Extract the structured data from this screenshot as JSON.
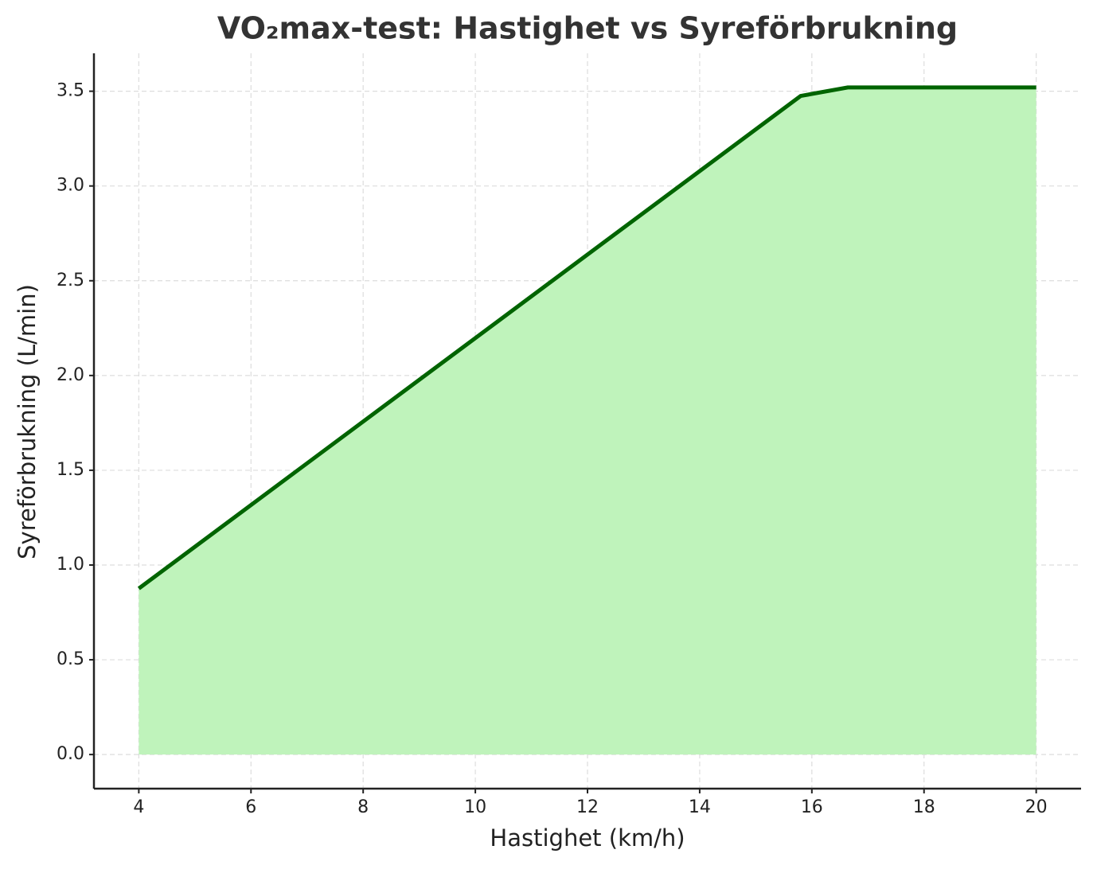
{
  "chart_data": {
    "type": "area",
    "title": "VO₂max-test: Hastighet vs Syreförbrukning",
    "x_label": "Hastighet (km/h)",
    "y_label": "Syreförbrukning (L/min)",
    "x": [
      4,
      15.8,
      16.64,
      20
    ],
    "series": [
      {
        "color": "#006400",
        "fill": "#bff3bb",
        "values": [
          0.876,
          3.475,
          3.52,
          3.52
        ]
      }
    ],
    "xlim": [
      3.2,
      20.8
    ],
    "ylim": [
      -0.18,
      3.7
    ],
    "xticks": [
      4,
      6,
      8,
      10,
      12,
      14,
      16,
      18,
      20
    ],
    "yticks": [
      {
        "value": 0,
        "label": "0.0"
      },
      0.5,
      {
        "value": 1,
        "label": "1.0"
      },
      1.5,
      {
        "value": 2,
        "label": "2.0"
      },
      2.5,
      {
        "value": 3,
        "label": "3.0"
      },
      3.5
    ],
    "grid": true
  }
}
